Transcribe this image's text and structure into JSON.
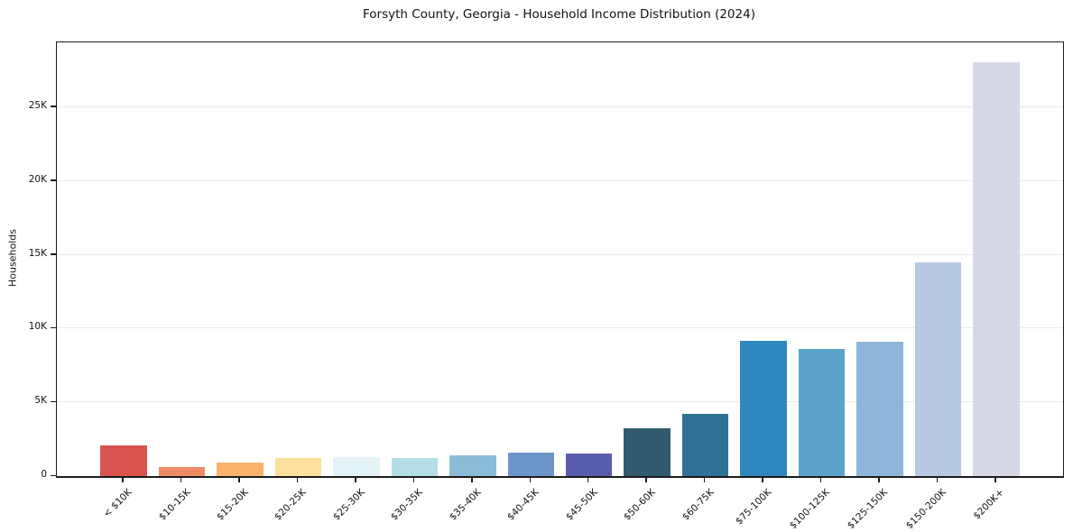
{
  "chart_data": {
    "type": "bar",
    "title": "Forsyth County, Georgia - Household Income Distribution (2024)",
    "xlabel": "",
    "ylabel": "Households",
    "categories": [
      "< $10K",
      "$10-15K",
      "$15-20K",
      "$20-25K",
      "$25-30K",
      "$30-35K",
      "$35-40K",
      "$40-45K",
      "$45-50K",
      "$50-60K",
      "$60-75K",
      "$75-100K",
      "$100-125K",
      "$125-150K",
      "$150-200K",
      "$200K+"
    ],
    "values": [
      2100,
      600,
      900,
      1250,
      1300,
      1250,
      1400,
      1600,
      1550,
      3250,
      4200,
      9150,
      8600,
      9100,
      14500,
      28050
    ],
    "bar_colors": [
      "#d9544e",
      "#ee8a64",
      "#f9b26b",
      "#fce09c",
      "#e3f3f6",
      "#b4dde7",
      "#8cbbda",
      "#6d94c9",
      "#5a5dae",
      "#315a6e",
      "#2f7295",
      "#2e87bd",
      "#5ba3cb",
      "#8db6d9",
      "#b7c8e3",
      "#d7d8e6"
    ],
    "ylim": [
      0,
      29400
    ],
    "yticks": [
      0,
      5000,
      10000,
      15000,
      20000,
      25000
    ],
    "ytick_labels": [
      "0",
      "5K",
      "10K",
      "15K",
      "20K",
      "25K"
    ],
    "grid": "horizontal",
    "legend": "none",
    "bar_width_ratio": 0.8,
    "xtick_rotation_deg": 45
  },
  "colors": {
    "spine": "#1c1c1c",
    "grid": "#e9e9e9",
    "text": "#111111",
    "background": "#ffffff"
  }
}
